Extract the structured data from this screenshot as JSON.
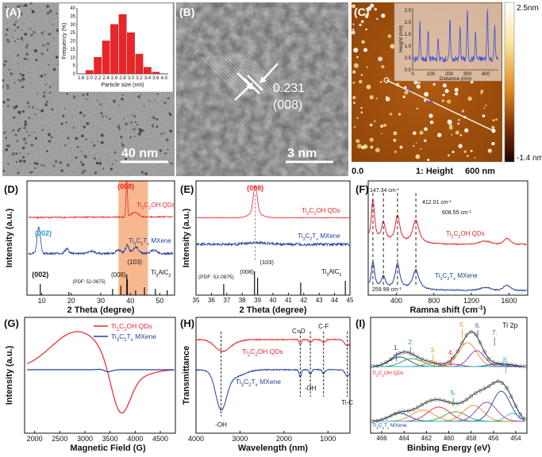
{
  "panels": {
    "A": {
      "label": "(A)",
      "scale_bar": "40 nm",
      "inset": {
        "type": "bar",
        "xlabel": "Particle size (nm)",
        "ylabel": "Frequency (%)",
        "categories": [
          "1.6",
          "2.0",
          "2.2",
          "2.4",
          "2.6",
          "2.8",
          "3.0",
          "3.2",
          "3.4",
          "3.6",
          "4.0"
        ],
        "values": [
          0,
          2,
          10,
          20,
          30,
          36,
          25,
          12,
          4,
          1,
          0
        ],
        "yticks": [
          "0",
          "5",
          "10",
          "15",
          "20",
          "25",
          "30",
          "35",
          "40"
        ],
        "ylim": [
          0,
          40
        ],
        "bar_color": "#e8252a"
      }
    },
    "B": {
      "label": "(B)",
      "spacing": "0.231",
      "plane": "(008)",
      "scale_bar": "3 nm"
    },
    "C": {
      "label": "(C)",
      "colorbar_max": "2.5nm",
      "colorbar_min": "-1.4 nm",
      "axis_origin": "0.0",
      "axis_end": "600 nm",
      "channel": "1: Height",
      "inset": {
        "type": "line",
        "xlabel": "Distance (nm)",
        "ylabel": "Height (nm)",
        "xticks": [
          "0",
          "100",
          "200",
          "300",
          "400"
        ],
        "yticks": [
          "0.0",
          "0.5",
          "1.0",
          "1.5",
          "2.0",
          "2.5"
        ],
        "line_color": "#3a4fd8"
      }
    },
    "D": {
      "label": "(D)",
      "type": "line",
      "xlabel": "2 Theta (degree)",
      "ylabel": "Intensity (a.u.)",
      "xticks": [
        "10",
        "20",
        "30",
        "40",
        "50"
      ],
      "xlim": [
        5,
        55
      ],
      "series": [
        {
          "name_main": "Ti",
          "name_sub1": "2",
          "name_mid": "C",
          "name_sub2": "",
          "name_end": "OH QDs",
          "color": "#e8252a"
        },
        {
          "name_main": "Ti",
          "name_sub1": "3",
          "name_mid": "C",
          "name_sub2": "2",
          "name_end": "T",
          "name_sub3": "x",
          "name_tail": " MXene",
          "color": "#22409a"
        }
      ],
      "reference_main": "Ti",
      "reference_sub1": "3",
      "reference_mid": "AlC",
      "reference_sub2": "2",
      "pdf": "(PDF: 52-0875)",
      "peak_labels": {
        "p008_red": "(008)",
        "p002_blue": "(002)",
        "p002_ref": "(002)",
        "p008_ref": "(008)",
        "p103_ref": "(103)"
      },
      "highlight_range": [
        36,
        46
      ],
      "highlight_color": "#f5a06a"
    },
    "E": {
      "label": "(E)",
      "type": "line",
      "xlabel": "2 Theta (degree)",
      "ylabel": "Intensity (a.u.)",
      "xticks": [
        "35",
        "36",
        "37",
        "38",
        "39",
        "40",
        "41",
        "42",
        "43",
        "44",
        "45"
      ],
      "xlim": [
        35,
        45
      ],
      "series_label_red": "Ti2COH QDs",
      "series_label_blue": "Ti3C2Tx MXene",
      "peak_red": "(008)",
      "pdf": "(PDF: 52-0875)",
      "ref_008": "(008)",
      "ref_103": "(103)",
      "reference": "Ti3AlC2"
    },
    "F": {
      "label": "(F)",
      "type": "line",
      "xlabel": "Ramna shift (cm",
      "xlabel_sup": "-1",
      "xlabel_end": ")",
      "xticks": [
        "400",
        "800",
        "1200",
        "1600"
      ],
      "xlim": [
        100,
        1800
      ],
      "peaks": [
        {
          "text": "147.34 cm",
          "sup": "-1"
        },
        {
          "text": "412.01 cm",
          "sup": "-1"
        },
        {
          "text": "608.55 cm",
          "sup": "-1"
        },
        {
          "text": "259.99 cm",
          "sup": "-1"
        }
      ],
      "series_label_red": "Ti2COH QDs",
      "series_label_blue": "Ti3C2Tx MXene"
    },
    "G": {
      "label": "(G)",
      "type": "line",
      "xlabel": "Magnetic Field (G)",
      "ylabel": "Intensity (a.u.)",
      "xticks": [
        "2000",
        "2500",
        "3000",
        "3500",
        "4000",
        "4500"
      ],
      "xlim": [
        1800,
        4800
      ],
      "legend_red": "Ti2COH QDs",
      "legend_blue": "Ti3C2Tx MXene"
    },
    "H": {
      "label": "(H)",
      "type": "line",
      "xlabel": "Wavelength (nm)",
      "ylabel": "Transmittance",
      "xticks": [
        "4000",
        "3000",
        "2000",
        "1000"
      ],
      "xlim": [
        4000,
        500
      ],
      "series_label_red": "Ti2COH QDs",
      "series_label_blue": "Ti3C2Tx MXene",
      "bands": {
        "co": "C=O",
        "cf": "C-F",
        "oh_mid": "-OH",
        "oh_left": "-OH",
        "tic": "Ti-C"
      }
    },
    "I": {
      "label": "(I)",
      "type": "line",
      "title": "Ti 2p",
      "xlabel": "Binbing Energy (eV)",
      "xticks": [
        "466",
        "464",
        "462",
        "460",
        "458",
        "456",
        "454"
      ],
      "xlim": [
        467,
        453
      ],
      "series_label_red": "Ti2COH QDs",
      "series_label_blue": "Ti3C2Tx MXene",
      "peak_numbers": [
        "1.",
        "2.",
        "3.",
        "4.",
        "5.",
        "6.",
        "7.",
        "8.",
        "9."
      ]
    }
  },
  "colors": {
    "red": "#e8252a",
    "blue": "#22409a",
    "green": "#2e9e3c",
    "orange": "#f08a24",
    "purple": "#7b3fb0",
    "cyan": "#2bb3d0"
  }
}
